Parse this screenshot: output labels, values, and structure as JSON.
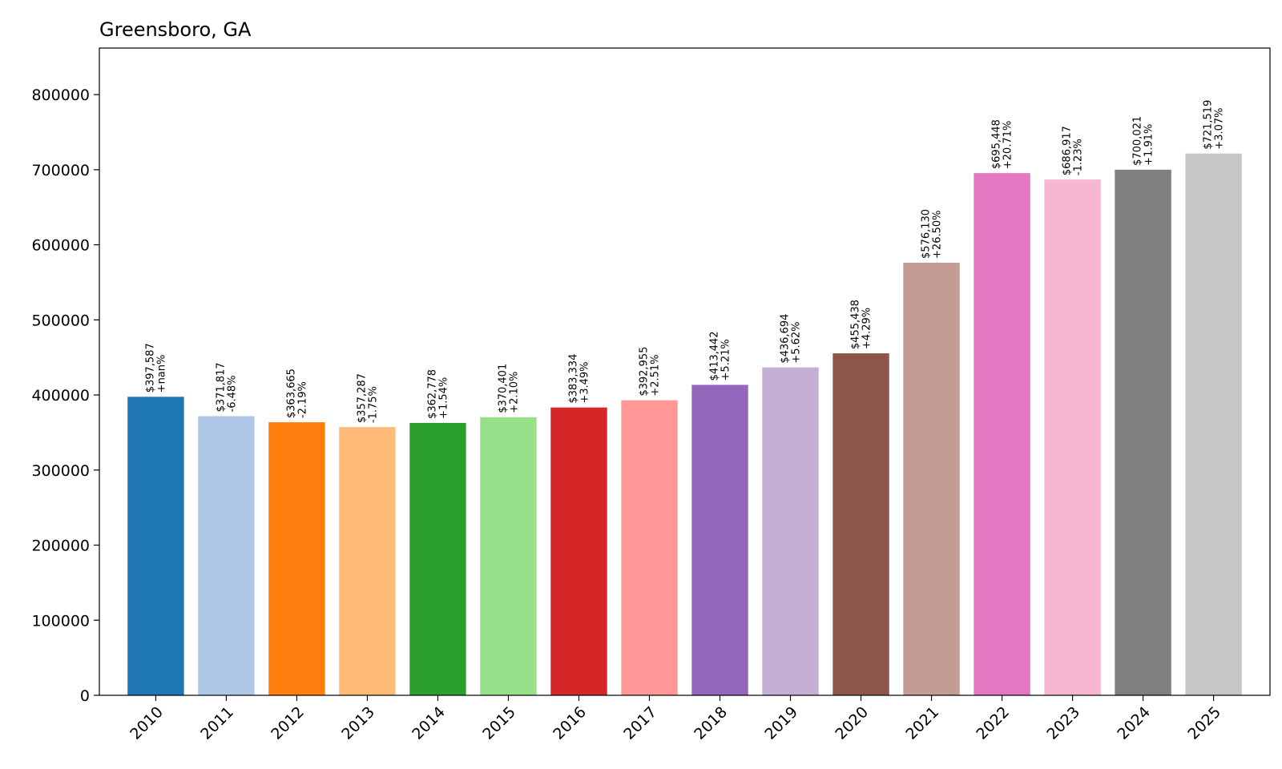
{
  "chart_data": {
    "type": "bar",
    "title": "Greensboro, GA",
    "xlabel": "",
    "ylabel": "",
    "categories": [
      "2010",
      "2011",
      "2012",
      "2013",
      "2014",
      "2015",
      "2016",
      "2017",
      "2018",
      "2019",
      "2020",
      "2021",
      "2022",
      "2023",
      "2024",
      "2025"
    ],
    "values": [
      397587,
      371817,
      363665,
      357287,
      362778,
      370401,
      383334,
      392955,
      413442,
      436694,
      455438,
      576130,
      695448,
      686917,
      700021,
      721519
    ],
    "value_labels": [
      "$397,587",
      "$371,817",
      "$363,665",
      "$357,287",
      "$362,778",
      "$370,401",
      "$383,334",
      "$392,955",
      "$413,442",
      "$436,694",
      "$455,438",
      "$576,130",
      "$695,448",
      "$686,917",
      "$700,021",
      "$721,519"
    ],
    "change_labels": [
      "+nan%",
      "-6.48%",
      "-2.19%",
      "-1.75%",
      "+1.54%",
      "+2.10%",
      "+3.49%",
      "+2.51%",
      "+5.21%",
      "+5.62%",
      "+4.29%",
      "+26.50%",
      "+20.71%",
      "-1.23%",
      "+1.91%",
      "+3.07%"
    ],
    "colors": [
      "#1f77b4",
      "#aec7e8",
      "#ff7f0e",
      "#ffbb78",
      "#2ca02c",
      "#98df8a",
      "#d62728",
      "#ff9896",
      "#9467bd",
      "#c5b0d5",
      "#8c564b",
      "#c49c94",
      "#e377c2",
      "#f7b6d2",
      "#7f7f7f",
      "#c7c7c7"
    ],
    "yticks": [
      "0",
      "100000",
      "200000",
      "300000",
      "400000",
      "500000",
      "600000",
      "700000",
      "800000"
    ],
    "ylim": [
      0,
      862000
    ],
    "grid": false,
    "legend": "none"
  }
}
